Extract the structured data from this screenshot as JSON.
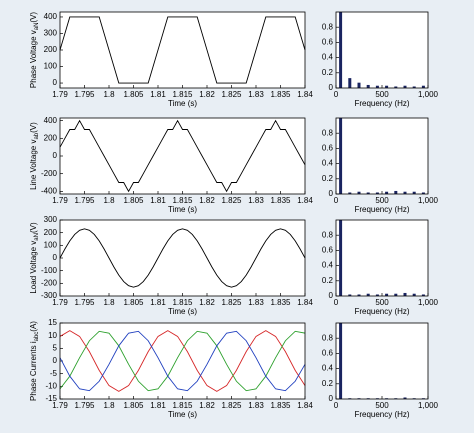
{
  "chart_data": [
    {
      "type": "line",
      "xlabel": "Time (s)",
      "ylabel": {
        "text": "Phase Voltage v",
        "sub": "aN",
        "unit": "(V)"
      },
      "x": [
        1.79,
        1.791,
        1.792,
        1.793,
        1.794,
        1.795,
        1.796,
        1.797,
        1.798,
        1.799,
        1.8,
        1.801,
        1.802,
        1.803,
        1.804,
        1.805,
        1.806,
        1.807,
        1.808,
        1.809,
        1.81,
        1.811,
        1.812,
        1.813,
        1.814,
        1.815,
        1.816,
        1.817,
        1.818,
        1.819,
        1.82,
        1.821,
        1.822,
        1.823,
        1.824,
        1.825,
        1.826,
        1.827,
        1.828,
        1.829,
        1.83,
        1.831,
        1.832,
        1.833,
        1.834,
        1.835,
        1.836,
        1.837,
        1.838,
        1.839,
        1.84
      ],
      "series": [
        {
          "color": "#000000",
          "values": [
            200,
            300,
            400,
            400,
            400,
            400,
            400,
            400,
            400,
            300,
            200,
            100,
            0,
            0,
            0,
            0,
            0,
            0,
            0,
            100,
            200,
            300,
            400,
            400,
            400,
            400,
            400,
            400,
            400,
            300,
            200,
            100,
            0,
            0,
            0,
            0,
            0,
            0,
            0,
            100,
            200,
            300,
            400,
            400,
            400,
            400,
            400,
            400,
            400,
            300,
            200
          ]
        }
      ],
      "xlim": [
        1.79,
        1.84
      ],
      "xticks": [
        1.79,
        1.795,
        1.8,
        1.805,
        1.81,
        1.815,
        1.82,
        1.825,
        1.83,
        1.835,
        1.84
      ],
      "ylim": [
        -30,
        430
      ],
      "yticks": [
        0,
        100,
        200,
        300,
        400
      ]
    },
    {
      "type": "bar",
      "xlabel": "Frequency (Hz)",
      "x": [
        50,
        150,
        250,
        350,
        450,
        550,
        650,
        750,
        850,
        950
      ],
      "values": [
        1,
        0.13,
        0.07,
        0.04,
        0.03,
        0.03,
        0.02,
        0.03,
        0.02,
        0.03
      ],
      "color": "#1a2460",
      "xlim": [
        0,
        1000
      ],
      "xticks": [
        0,
        500,
        {
          "value": 1000,
          "label": "1,000"
        }
      ],
      "ylim": [
        0,
        1
      ],
      "yticks": [
        0,
        0.2,
        0.4,
        0.6,
        0.8
      ]
    },
    {
      "type": "line",
      "xlabel": "Time (s)",
      "ylabel": {
        "text": "Line Voltage v",
        "sub": "ab",
        "unit": "(V)"
      },
      "x": [
        1.79,
        1.791,
        1.792,
        1.793,
        1.794,
        1.795,
        1.796,
        1.797,
        1.798,
        1.799,
        1.8,
        1.801,
        1.802,
        1.803,
        1.804,
        1.805,
        1.806,
        1.807,
        1.808,
        1.809,
        1.81,
        1.811,
        1.812,
        1.813,
        1.814,
        1.815,
        1.816,
        1.817,
        1.818,
        1.819,
        1.82,
        1.821,
        1.822,
        1.823,
        1.824,
        1.825,
        1.826,
        1.827,
        1.828,
        1.829,
        1.83,
        1.831,
        1.832,
        1.833,
        1.834,
        1.835,
        1.836,
        1.837,
        1.838,
        1.839,
        1.84
      ],
      "series": [
        {
          "color": "#000000",
          "values": [
            100,
            200,
            300,
            300,
            400,
            300,
            300,
            200,
            100,
            0,
            -100,
            -200,
            -300,
            -300,
            -400,
            -300,
            -300,
            -200,
            -100,
            0,
            100,
            200,
            300,
            300,
            400,
            300,
            300,
            200,
            100,
            0,
            -100,
            -200,
            -300,
            -300,
            -400,
            -300,
            -300,
            -200,
            -100,
            0,
            100,
            200,
            300,
            300,
            400,
            300,
            300,
            200,
            100,
            0,
            -100
          ]
        }
      ],
      "xlim": [
        1.79,
        1.84
      ],
      "xticks": [
        1.79,
        1.795,
        1.8,
        1.805,
        1.81,
        1.815,
        1.82,
        1.825,
        1.83,
        1.835,
        1.84
      ],
      "ylim": [
        -430,
        430
      ],
      "yticks": [
        -400,
        -200,
        0,
        200,
        400
      ]
    },
    {
      "type": "bar",
      "xlabel": "Frequency (Hz)",
      "x": [
        50,
        150,
        250,
        350,
        450,
        550,
        650,
        750,
        850,
        950
      ],
      "values": [
        1,
        0.02,
        0.03,
        0.02,
        0.02,
        0.03,
        0.04,
        0.03,
        0.03,
        0.02
      ],
      "color": "#1a2460",
      "xlim": [
        0,
        1000
      ],
      "xticks": [
        0,
        500,
        {
          "value": 1000,
          "label": "1,000"
        }
      ],
      "ylim": [
        0,
        1
      ],
      "yticks": [
        0,
        0.2,
        0.4,
        0.6,
        0.8
      ]
    },
    {
      "type": "line",
      "xlabel": "Time (s)",
      "ylabel": {
        "text": "Load Voltage v",
        "sub": "aN",
        "unit": "(V)"
      },
      "x": [
        1.79,
        1.791,
        1.792,
        1.793,
        1.794,
        1.795,
        1.796,
        1.797,
        1.798,
        1.799,
        1.8,
        1.801,
        1.802,
        1.803,
        1.804,
        1.805,
        1.806,
        1.807,
        1.808,
        1.809,
        1.81,
        1.811,
        1.812,
        1.813,
        1.814,
        1.815,
        1.816,
        1.817,
        1.818,
        1.819,
        1.82,
        1.821,
        1.822,
        1.823,
        1.824,
        1.825,
        1.826,
        1.827,
        1.828,
        1.829,
        1.83,
        1.831,
        1.832,
        1.833,
        1.834,
        1.835,
        1.836,
        1.837,
        1.838,
        1.839,
        1.84
      ],
      "series": [
        {
          "color": "#000000",
          "values": [
            0,
            71,
            135,
            186,
            219,
            230,
            219,
            186,
            135,
            71,
            0,
            -71,
            -135,
            -186,
            -219,
            -230,
            -219,
            -186,
            -135,
            -71,
            0,
            71,
            135,
            186,
            219,
            230,
            219,
            186,
            135,
            71,
            0,
            -71,
            -135,
            -186,
            -219,
            -230,
            -219,
            -186,
            -135,
            -71,
            0,
            71,
            135,
            186,
            219,
            230,
            219,
            186,
            135,
            71,
            0
          ]
        }
      ],
      "xlim": [
        1.79,
        1.84
      ],
      "xticks": [
        1.79,
        1.795,
        1.8,
        1.805,
        1.81,
        1.815,
        1.82,
        1.825,
        1.83,
        1.835,
        1.84
      ],
      "ylim": [
        -300,
        300
      ],
      "yticks": [
        -300,
        -200,
        -100,
        0,
        100,
        200,
        300
      ]
    },
    {
      "type": "bar",
      "xlabel": "Frequency (Hz)",
      "x": [
        50,
        150,
        250,
        350,
        450,
        550,
        650,
        750,
        850,
        950
      ],
      "values": [
        1,
        0.02,
        0.02,
        0.03,
        0.02,
        0.03,
        0.03,
        0.04,
        0.03,
        0.02
      ],
      "color": "#1a2460",
      "xlim": [
        0,
        1000
      ],
      "xticks": [
        0,
        500,
        {
          "value": 1000,
          "label": "1,000"
        }
      ],
      "ylim": [
        0,
        1
      ],
      "yticks": [
        0,
        0.2,
        0.4,
        0.6,
        0.8
      ]
    },
    {
      "type": "line",
      "xlabel": "Time (s)",
      "ylabel": {
        "text": "Phase Currents i",
        "sub": "abc",
        "unit": "(A)"
      },
      "x": [
        1.79,
        1.792,
        1.794,
        1.796,
        1.798,
        1.8,
        1.802,
        1.804,
        1.806,
        1.808,
        1.81,
        1.812,
        1.814,
        1.816,
        1.818,
        1.82,
        1.822,
        1.824,
        1.826,
        1.828,
        1.83,
        1.832,
        1.834,
        1.836,
        1.838,
        1.84
      ],
      "series": [
        {
          "color": "#d62728",
          "values": [
            9.7,
            12,
            9.7,
            3.7,
            -3.7,
            -9.7,
            -12,
            -9.7,
            -3.7,
            3.7,
            9.7,
            12,
            9.7,
            3.7,
            -3.7,
            -9.7,
            -12,
            -9.7,
            -3.7,
            3.7,
            9.7,
            12,
            9.7,
            3.7,
            -3.7,
            -9.7
          ]
        },
        {
          "color": "#2ca02c",
          "values": [
            -11,
            -6,
            1.3,
            8,
            11.7,
            11,
            6,
            -1.3,
            -8,
            -11.7,
            -11,
            -6,
            1.3,
            8,
            11.7,
            11,
            6,
            -1.3,
            -8,
            -11.7,
            -11,
            -6,
            1.3,
            8,
            11.7,
            11
          ]
        },
        {
          "color": "#1f3fbf",
          "values": [
            1.3,
            -6,
            -11,
            -11.7,
            -8,
            -1.3,
            6,
            11,
            11.7,
            8,
            1.3,
            -6,
            -11,
            -11.7,
            -8,
            -1.3,
            6,
            11,
            11.7,
            8,
            1.3,
            -6,
            -11,
            -11.7,
            -8,
            -1.3
          ]
        }
      ],
      "xlim": [
        1.79,
        1.84
      ],
      "xticks": [
        1.79,
        1.795,
        1.8,
        1.805,
        1.81,
        1.815,
        1.82,
        1.825,
        1.83,
        1.835,
        1.84
      ],
      "ylim": [
        -15,
        15
      ],
      "yticks": [
        -15,
        -10,
        -5,
        0,
        5,
        10,
        15
      ]
    },
    {
      "type": "bar",
      "xlabel": "Frequency (Hz)",
      "x": [
        50,
        150,
        250,
        350,
        450,
        550,
        650,
        750,
        850,
        950
      ],
      "values": [
        1,
        0.01,
        0.01,
        0.01,
        0.01,
        0.01,
        0.01,
        0.02,
        0.01,
        0.01
      ],
      "color": "#1a2460",
      "xlim": [
        0,
        1000
      ],
      "xticks": [
        0,
        500,
        {
          "value": 1000,
          "label": "1,000"
        }
      ],
      "ylim": [
        0,
        1
      ],
      "yticks": [
        0,
        0.2,
        0.4,
        0.6,
        0.8
      ]
    }
  ]
}
